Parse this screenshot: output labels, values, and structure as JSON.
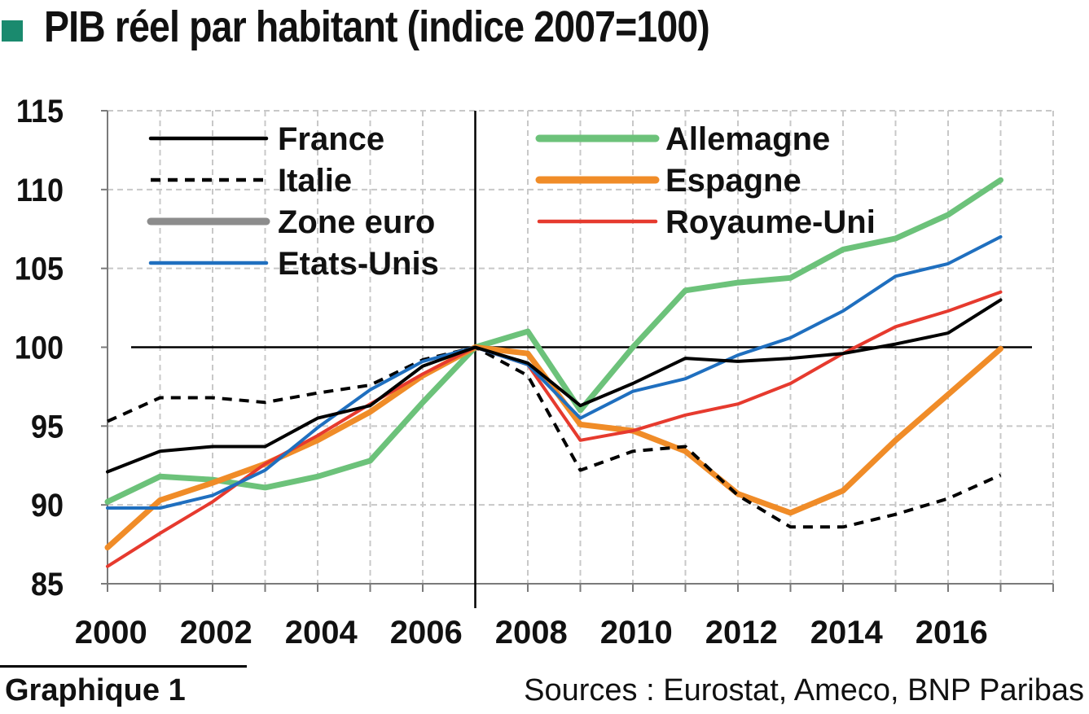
{
  "header": {
    "title": "PIB réel par habitant (indice 2007=100)",
    "bullet_color": "#1a8a6e"
  },
  "footer": {
    "figure_label": "Graphique 1",
    "sources": "Sources : Eurostat, Ameco, BNP Paribas"
  },
  "chart_data": {
    "type": "line",
    "title": "PIB réel par habitant (indice 2007=100)",
    "xlabel": "",
    "ylabel": "",
    "x": [
      2000,
      2001,
      2002,
      2003,
      2004,
      2005,
      2006,
      2007,
      2008,
      2009,
      2010,
      2011,
      2012,
      2013,
      2014,
      2015,
      2016,
      2017
    ],
    "x_tick_labels": [
      "2000",
      "2002",
      "2004",
      "2006",
      "2008",
      "2010",
      "2012",
      "2014",
      "2016"
    ],
    "y_tick_labels": [
      "85",
      "90",
      "95",
      "100",
      "105",
      "110",
      "115"
    ],
    "ylim": [
      85,
      115
    ],
    "xlim": [
      2000,
      2018
    ],
    "grid": "horizontal, dashed",
    "reference_line_y": 100,
    "reference_line_x": 2007,
    "legend_placement": "top, inside plot, two columns",
    "series": [
      {
        "name": "France",
        "color": "#000000",
        "style": "solid",
        "values": [
          92.1,
          93.4,
          93.7,
          93.7,
          95.5,
          96.3,
          98.8,
          100,
          99.0,
          96.3,
          97.7,
          99.3,
          99.1,
          99.3,
          99.6,
          100.2,
          100.9,
          103.0
        ]
      },
      {
        "name": "Italie",
        "color": "#000000",
        "style": "dashed",
        "values": [
          95.3,
          96.8,
          96.8,
          96.5,
          97.1,
          97.6,
          99.2,
          100,
          98.2,
          92.2,
          93.4,
          93.7,
          90.6,
          88.6,
          88.6,
          89.4,
          90.4,
          91.9
        ]
      },
      {
        "name": "Zone euro",
        "color": "#8c8c8c",
        "style": "solid",
        "values": [
          null,
          null,
          null,
          null,
          null,
          null,
          null,
          null,
          null,
          null,
          null,
          null,
          null,
          null,
          null,
          null,
          null,
          null
        ]
      },
      {
        "name": "Etats-Unis",
        "color": "#1f6fbf",
        "style": "solid",
        "values": [
          89.8,
          89.8,
          90.6,
          92.2,
          94.9,
          97.3,
          99.1,
          100,
          98.9,
          95.5,
          97.2,
          98.0,
          99.5,
          100.6,
          102.3,
          104.5,
          105.3,
          107.0
        ]
      },
      {
        "name": "Allemagne",
        "color": "#6cc27a",
        "style": "solid",
        "values": [
          90.2,
          91.8,
          91.6,
          91.1,
          91.8,
          92.8,
          96.5,
          100,
          101.0,
          96.0,
          100.0,
          103.6,
          104.1,
          104.4,
          106.2,
          106.9,
          108.4,
          110.6
        ]
      },
      {
        "name": "Espagne",
        "color": "#f08c28",
        "style": "solid",
        "values": [
          87.3,
          90.3,
          91.4,
          92.6,
          94.1,
          95.9,
          98.2,
          100,
          99.6,
          95.1,
          94.7,
          93.4,
          90.7,
          89.5,
          90.9,
          94.1,
          97.0,
          99.9
        ]
      },
      {
        "name": "Royaume-Uni",
        "color": "#e63a2e",
        "style": "solid",
        "values": [
          86.1,
          88.2,
          90.2,
          92.6,
          94.4,
          96.4,
          98.3,
          100,
          98.9,
          94.1,
          94.7,
          95.7,
          96.4,
          97.7,
          99.6,
          101.3,
          102.3,
          103.5
        ]
      }
    ],
    "legend_columns": [
      [
        "France",
        "Italie",
        "Zone euro",
        "Etats-Unis"
      ],
      [
        "Allemagne",
        "Espagne",
        "Royaume-Uni"
      ]
    ]
  }
}
